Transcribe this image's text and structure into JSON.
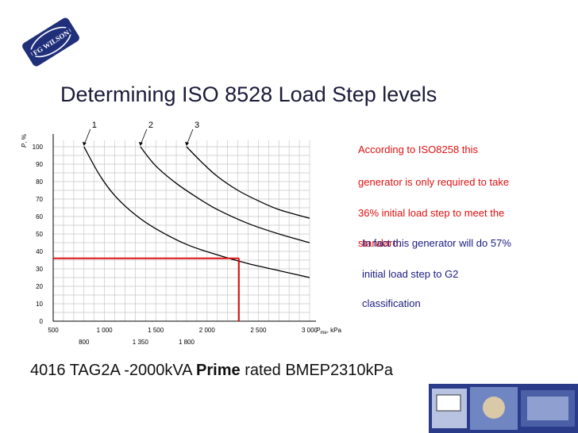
{
  "logo_text": "FG WILSON",
  "title": "Determining ISO 8528 Load Step levels",
  "chart_data": {
    "type": "line",
    "ylabel": "P",
    "ylabel_suffix": ", %",
    "xlabel_main": "P",
    "xlabel_sub": "me",
    "xlabel_unit": ", kPa",
    "xlim": [
      500,
      3000
    ],
    "ylim": [
      0,
      100
    ],
    "grid": true,
    "x_ticks": [
      500,
      1000,
      1500,
      2000,
      2500,
      3000
    ],
    "x_tick_labels": [
      "500",
      "1 000",
      "1 500",
      "2 000",
      "2 500",
      "3 000"
    ],
    "x_sub_ticks": [
      800,
      1350,
      1800
    ],
    "x_sub_tick_labels": [
      "800",
      "1 350",
      "1 800"
    ],
    "y_ticks": [
      0,
      10,
      20,
      30,
      40,
      50,
      60,
      70,
      80,
      90,
      100
    ],
    "y_tick_labels": [
      "0",
      "10",
      "20",
      "30",
      "40",
      "50",
      "60",
      "70",
      "80",
      "90",
      "100"
    ],
    "series": [
      {
        "name": "1",
        "x": [
          800,
          950,
          1100,
          1300,
          1500,
          1800,
          2100,
          2400,
          2700,
          3000
        ],
        "values": [
          100,
          84,
          72,
          61,
          53,
          44,
          38,
          33,
          29,
          25
        ]
      },
      {
        "name": "2",
        "x": [
          1350,
          1500,
          1700,
          1900,
          2100,
          2400,
          2700,
          3000
        ],
        "values": [
          100,
          89,
          79,
          71,
          64,
          56,
          50,
          45
        ]
      },
      {
        "name": "3",
        "x": [
          1800,
          1950,
          2100,
          2300,
          2500,
          2700,
          3000
        ],
        "values": [
          100,
          91,
          83,
          75,
          69,
          64,
          59
        ]
      }
    ],
    "annotation_line": {
      "x": 2310,
      "y": 36
    }
  },
  "note_red": [
    "According to ISO8258 this",
    "generator is only required to take",
    "36% initial load step to meet the",
    "standard."
  ],
  "note_blue": [
    "In fact this generator will do 57%",
    "initial load step to G2",
    "classification"
  ],
  "footer": {
    "prefix": "4016 TAG2A -2000kVA ",
    "bold": "Prime",
    "suffix": " rated  BMEP2310kPa"
  }
}
